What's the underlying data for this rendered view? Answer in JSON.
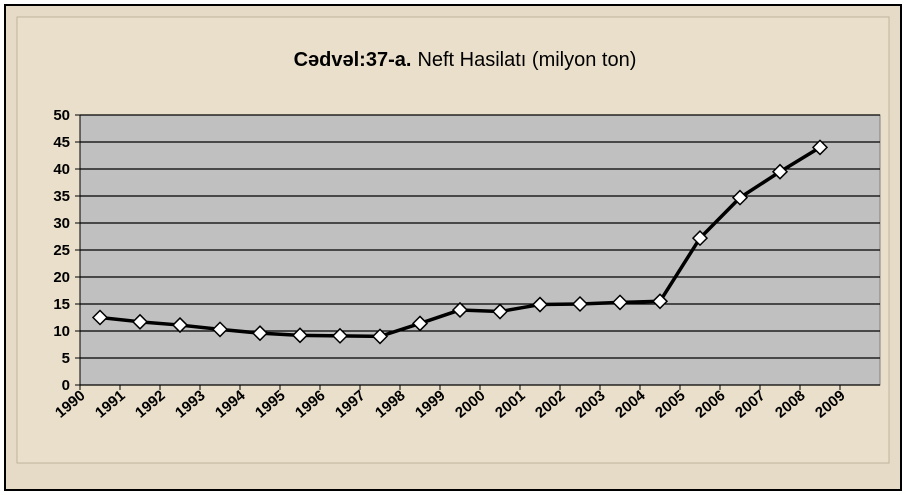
{
  "chart_data": {
    "type": "line",
    "title_prefix": "Cədvəl:37-a.",
    "title": "Neft Hasilatı (milyon ton)",
    "categories": [
      "1990",
      "1991",
      "1992",
      "1993",
      "1994",
      "1995",
      "1996",
      "1997",
      "1998",
      "1999",
      "2000",
      "2001",
      "2002",
      "2003",
      "2004",
      "2005",
      "2006",
      "2007",
      "2008",
      "2009"
    ],
    "series": [
      {
        "color": "#000000",
        "values": [
          12.5,
          11.7,
          11.1,
          10.3,
          9.6,
          9.2,
          9.1,
          9.0,
          11.4,
          13.9,
          13.6,
          14.9,
          15.0,
          15.3,
          15.5,
          27.2,
          34.7,
          39.5,
          44.0,
          null
        ]
      }
    ],
    "ylim": [
      0,
      50
    ],
    "yticks": [
      0,
      5,
      10,
      15,
      20,
      25,
      30,
      35,
      40,
      45,
      50
    ],
    "grid": true
  }
}
